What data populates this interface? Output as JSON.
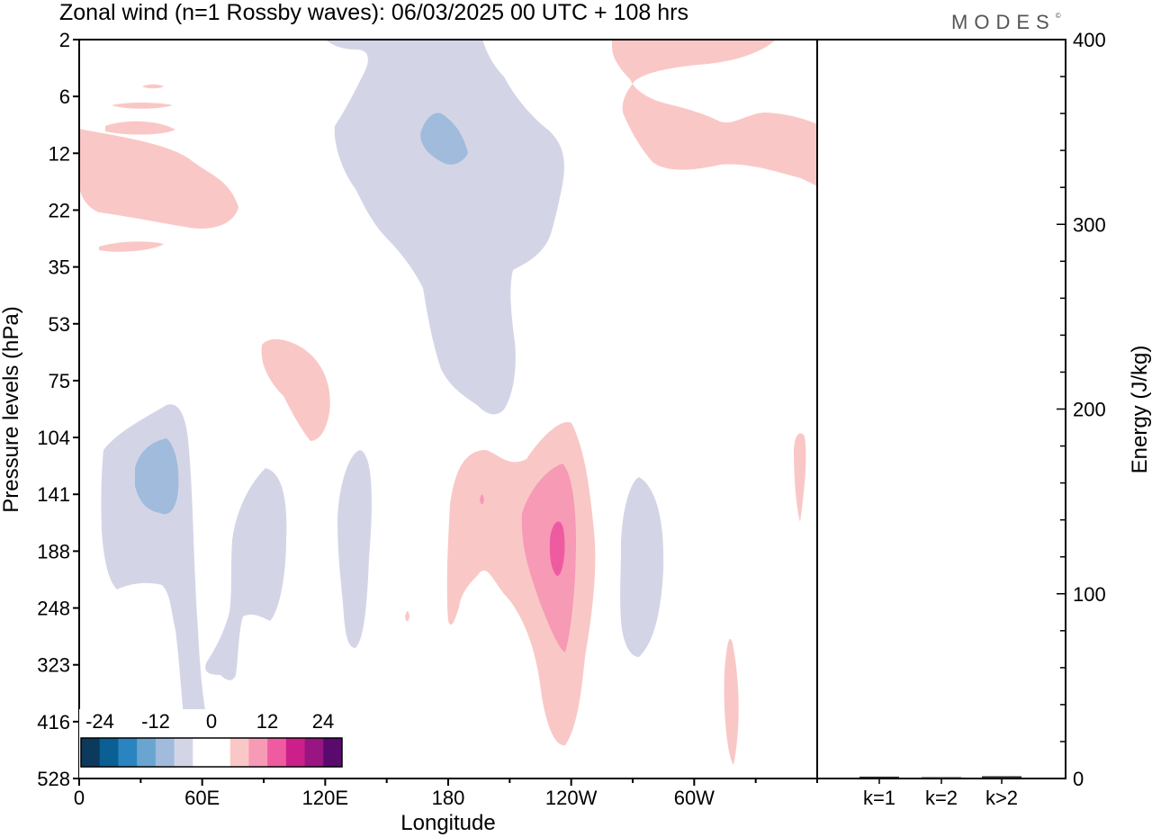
{
  "chart_data": {
    "type": "heatmap",
    "title": "Zonal wind (n=1 Rossby waves):  06/03/2025  00 UTC  + 108 hrs",
    "brand": "MODES",
    "brand_mark": "©",
    "xlabel": "Longitude",
    "ylabel": "Pressure levels (hPa)",
    "y2label": "Energy (J/kg)",
    "x_ticks": [
      "0",
      "60E",
      "120E",
      "180",
      "120W",
      "60W"
    ],
    "x_tick_values": [
      0,
      60,
      120,
      180,
      240,
      300
    ],
    "xlim": [
      0,
      360
    ],
    "pressure_levels": [
      "2",
      "6",
      "12",
      "22",
      "35",
      "53",
      "75",
      "104",
      "141",
      "188",
      "248",
      "323",
      "416",
      "528"
    ],
    "energy_ticks": [
      "0",
      "100",
      "200",
      "300",
      "400"
    ],
    "energy_ylim": [
      0,
      400
    ],
    "energy_bars": {
      "categories": [
        "k=1",
        "k=2",
        "k>2"
      ],
      "values": [
        1,
        0.3,
        1.2
      ]
    },
    "colorbar": {
      "tick_labels": [
        "-24",
        "-12",
        "0",
        "12",
        "24"
      ],
      "colors": [
        "#0c3a5c",
        "#0b5f92",
        "#2a84c0",
        "#6aa5cf",
        "#a0bbdc",
        "#d3d5e7",
        "#ffffff",
        "#ffffff",
        "#f9c8c6",
        "#f69ab6",
        "#ef5ba0",
        "#cd1f8a",
        "#981582",
        "#5a0a6e"
      ]
    },
    "colors": {
      "weak_negative": "#d3d5e7",
      "moderate_negative": "#a0bbdc",
      "weak_positive": "#f9c8c6",
      "moderate_positive": "#f69ab6",
      "strong_positive": "#ef5ba0"
    }
  }
}
